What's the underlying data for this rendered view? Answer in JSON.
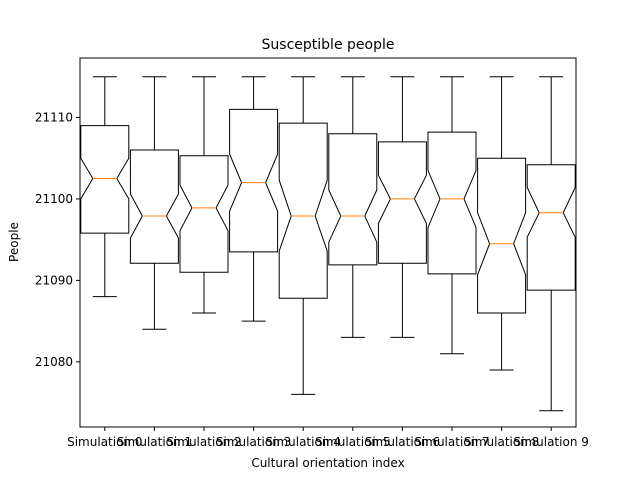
{
  "chart_data": {
    "type": "boxplot",
    "notched": true,
    "title": "Susceptible people",
    "xlabel": "Cultural orientation index",
    "ylabel": "People",
    "ylim": [
      21072.0,
      21117.3
    ],
    "yticks": [
      21080,
      21090,
      21100,
      21110
    ],
    "grid": false,
    "categories": [
      "Simulation 0",
      "Simulation 1",
      "Simulation 2",
      "Simulation 3",
      "Simulation 4",
      "Simulation 5",
      "Simulation 6",
      "Simulation 7",
      "Simulation 8",
      "Simulation 9"
    ],
    "boxes": [
      {
        "whisker_low": 21088.0,
        "q1": 21095.8,
        "median": 21102.5,
        "q3": 21109.0,
        "whisker_high": 21115.0,
        "notch_low": 21100.0,
        "notch_high": 21105.0
      },
      {
        "whisker_low": 21084.0,
        "q1": 21092.1,
        "median": 21097.9,
        "q3": 21106.0,
        "whisker_high": 21115.0,
        "notch_low": 21095.2,
        "notch_high": 21100.6
      },
      {
        "whisker_low": 21086.0,
        "q1": 21091.0,
        "median": 21098.9,
        "q3": 21105.3,
        "whisker_high": 21115.0,
        "notch_low": 21096.1,
        "notch_high": 21101.7
      },
      {
        "whisker_low": 21085.0,
        "q1": 21093.5,
        "median": 21102.0,
        "q3": 21111.0,
        "whisker_high": 21115.0,
        "notch_low": 21098.5,
        "notch_high": 21105.5
      },
      {
        "whisker_low": 21076.0,
        "q1": 21087.8,
        "median": 21097.9,
        "q3": 21109.3,
        "whisker_high": 21115.0,
        "notch_low": 21093.6,
        "notch_high": 21102.3
      },
      {
        "whisker_low": 21083.0,
        "q1": 21091.9,
        "median": 21097.9,
        "q3": 21108.0,
        "whisker_high": 21115.0,
        "notch_low": 21094.7,
        "notch_high": 21101.1
      },
      {
        "whisker_low": 21083.0,
        "q1": 21092.1,
        "median": 21100.0,
        "q3": 21107.0,
        "whisker_high": 21115.0,
        "notch_low": 21097.0,
        "notch_high": 21102.9
      },
      {
        "whisker_low": 21081.0,
        "q1": 21090.8,
        "median": 21100.0,
        "q3": 21108.2,
        "whisker_high": 21115.0,
        "notch_low": 21096.5,
        "notch_high": 21103.5
      },
      {
        "whisker_low": 21079.0,
        "q1": 21086.0,
        "median": 21094.5,
        "q3": 21105.0,
        "whisker_high": 21115.0,
        "notch_low": 21090.7,
        "notch_high": 21098.3
      },
      {
        "whisker_low": 21074.0,
        "q1": 21088.8,
        "median": 21098.3,
        "q3": 21104.2,
        "whisker_high": 21115.0,
        "notch_low": 21095.3,
        "notch_high": 21101.4
      }
    ],
    "colors": {
      "box": "#000000",
      "median": "#ff7f0e",
      "background": "#ffffff"
    }
  }
}
